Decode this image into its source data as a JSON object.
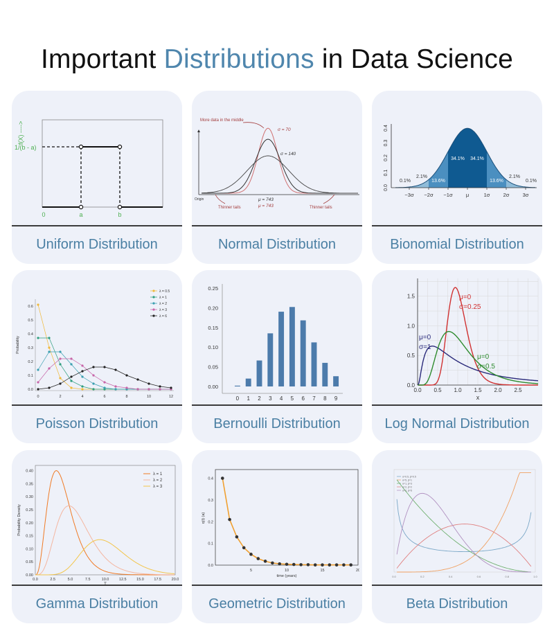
{
  "title": {
    "part1": "Important",
    "accent": "Distributions",
    "part2": "in Data Science"
  },
  "cards": [
    {
      "label": "Uniform Distribution"
    },
    {
      "label": "Normal Distribution"
    },
    {
      "label": "Bionomial Distribution"
    },
    {
      "label": "Poisson Distribution"
    },
    {
      "label": "Bernoulli Distribution"
    },
    {
      "label": "Log Normal Distribution"
    },
    {
      "label": "Gamma Distribution"
    },
    {
      "label": "Geometric Distribution"
    },
    {
      "label": "Beta Distribution"
    }
  ],
  "colors": {
    "accent": "#4f86ad",
    "card_bg": "#eef1f9",
    "green": "#4caf50",
    "red_annot": "#a33c3c"
  },
  "uniform": {
    "ylabel": "f(X) ---->",
    "level_label": "1/(b - a)",
    "xlabels": [
      "0",
      "a",
      "b"
    ]
  },
  "normal": {
    "annot_middle": "More data in the middle",
    "sigma1": "σ = 70",
    "sigma2": "σ = 140",
    "mu1": "μ = 743",
    "mu2": "μ = 743",
    "tails_left": "Thinner tails",
    "tails_right": "Thinner tails",
    "origin": "Origin"
  },
  "binomial": {
    "yticks": [
      "0.0",
      "0.1",
      "0.2",
      "0.3",
      "0.4"
    ],
    "xticks": [
      "−3σ",
      "−2σ",
      "−1σ",
      "μ",
      "1σ",
      "2σ",
      "3σ"
    ],
    "pct": [
      "0.1%",
      "2.1%",
      "13.6%",
      "34.1%",
      "34.1%",
      "13.6%",
      "2.1%",
      "0.1%"
    ]
  },
  "chart_data": [
    {
      "type": "line",
      "ylabel": "Probability",
      "xticks": [
        0,
        2,
        4,
        6,
        8,
        10,
        12
      ],
      "yticks": [
        0.0,
        0.1,
        0.2,
        0.3,
        0.4,
        0.5,
        0.6
      ],
      "ylim": [
        0,
        0.65
      ],
      "series": [
        {
          "name": "λ = 0.5",
          "color": "#f0b93a",
          "x": [
            0,
            1,
            2,
            3,
            4,
            5,
            6,
            7,
            8,
            9,
            10,
            11,
            12
          ],
          "values": [
            0.61,
            0.3,
            0.08,
            0.01,
            0,
            0,
            0,
            0,
            0,
            0,
            0,
            0,
            0
          ]
        },
        {
          "name": "λ = 1",
          "color": "#2e9e7e",
          "x": [
            0,
            1,
            2,
            3,
            4,
            5,
            6,
            7,
            8,
            9,
            10,
            11,
            12
          ],
          "values": [
            0.37,
            0.37,
            0.18,
            0.06,
            0.02,
            0,
            0,
            0,
            0,
            0,
            0,
            0,
            0
          ]
        },
        {
          "name": "λ = 2",
          "color": "#3a9fb0",
          "x": [
            0,
            1,
            2,
            3,
            4,
            5,
            6,
            7,
            8,
            9,
            10,
            11,
            12
          ],
          "values": [
            0.14,
            0.27,
            0.27,
            0.18,
            0.09,
            0.04,
            0.01,
            0,
            0,
            0,
            0,
            0,
            0
          ]
        },
        {
          "name": "λ = 3",
          "color": "#c765a8",
          "x": [
            0,
            1,
            2,
            3,
            4,
            5,
            6,
            7,
            8,
            9,
            10,
            11,
            12
          ],
          "values": [
            0.05,
            0.15,
            0.22,
            0.22,
            0.17,
            0.1,
            0.05,
            0.02,
            0.01,
            0,
            0,
            0,
            0
          ]
        },
        {
          "name": "λ = 6",
          "color": "#222222",
          "x": [
            0,
            1,
            2,
            3,
            4,
            5,
            6,
            7,
            8,
            9,
            10,
            11,
            12
          ],
          "values": [
            0.0,
            0.01,
            0.04,
            0.09,
            0.13,
            0.16,
            0.16,
            0.14,
            0.1,
            0.07,
            0.04,
            0.02,
            0.01
          ]
        }
      ]
    },
    {
      "type": "bar",
      "categories": [
        "0",
        "1",
        "2",
        "3",
        "4",
        "5",
        "6",
        "7",
        "8",
        "9"
      ],
      "values": [
        0.002,
        0.02,
        0.066,
        0.135,
        0.19,
        0.202,
        0.168,
        0.112,
        0.06,
        0.026
      ],
      "yticks": [
        "0.00",
        "0.05",
        "0.10",
        "0.15",
        "0.20",
        "0.25"
      ],
      "ylim": [
        0,
        0.25
      ],
      "color": "#4c7bab"
    },
    {
      "type": "line",
      "xlabel": "x",
      "xticks": [
        "0.0",
        "0.5",
        "1.0",
        "1.5",
        "2.0",
        "2.5"
      ],
      "yticks": [
        "0.0",
        "0.5",
        "1.0",
        "1.5"
      ],
      "xlim": [
        0,
        3.0
      ],
      "ylim": [
        0,
        1.8
      ],
      "series": [
        {
          "color": "#d03030",
          "mu_label": "μ=0",
          "sigma_label": "σ=0.25",
          "mu": 0,
          "sigma": 0.25
        },
        {
          "color": "#2a2a7a",
          "mu_label": "μ=0",
          "sigma_label": "σ=1",
          "mu": 0,
          "sigma": 1
        },
        {
          "color": "#2e8b2e",
          "mu_label": "μ=0",
          "sigma_label": "σ=0.5",
          "mu": 0,
          "sigma": 0.5
        }
      ]
    },
    {
      "type": "line",
      "xlabel": "T",
      "ylabel": "Probability Density",
      "xticks": [
        "0.0",
        "2.5",
        "5.0",
        "7.5",
        "10.0",
        "12.5",
        "15.0",
        "17.5",
        "20.0"
      ],
      "yticks": [
        "0.00",
        "0.05",
        "0.10",
        "0.15",
        "0.20",
        "0.25",
        "0.30",
        "0.35",
        "0.40"
      ],
      "xlim": [
        0,
        20
      ],
      "ylim": [
        0,
        0.42
      ],
      "series": [
        {
          "name": "λ = 1",
          "color": "#f07a24",
          "shape": 4,
          "scale": 0.8
        },
        {
          "name": "λ = 2",
          "color": "#f4b6a0",
          "shape": 5,
          "scale": 1.0
        },
        {
          "name": "λ = 3",
          "color": "#f3c54a",
          "shape": 10,
          "scale": 1.0
        }
      ]
    },
    {
      "type": "scatter",
      "xlabel": "time (years)",
      "ylabel": "q(t) (a)",
      "xticks": [
        "5",
        "10",
        "15",
        "20"
      ],
      "yticks": [
        "0.0",
        "0.1",
        "0.2",
        "0.3",
        "0.4"
      ],
      "xlim": [
        0,
        20
      ],
      "ylim": [
        0,
        0.44
      ],
      "x": [
        1,
        2,
        3,
        4,
        5,
        6,
        7,
        8,
        9,
        10,
        11,
        12,
        13,
        14,
        15,
        16,
        17,
        18,
        19
      ],
      "values": [
        0.4,
        0.21,
        0.13,
        0.08,
        0.05,
        0.03,
        0.018,
        0.01,
        0.006,
        0.004,
        0.003,
        0.002,
        0.002,
        0.001,
        0.001,
        0.001,
        0.001,
        0.001,
        0.001
      ],
      "line_color": "#f0a030",
      "point_color": "#333333"
    },
    {
      "type": "line",
      "xticks": [
        "0.0",
        "0.2",
        "0.4",
        "0.6",
        "0.8",
        "1.0"
      ],
      "xlim": [
        0,
        1
      ],
      "ylim": [
        0,
        3.2
      ],
      "series": [
        {
          "name": "α=0.5, β=0.5",
          "color": "#7aa7c7",
          "a": 0.5,
          "b": 0.5
        },
        {
          "name": "α=5, β=1",
          "color": "#f0a060",
          "a": 5,
          "b": 1
        },
        {
          "name": "α=1, β=3",
          "color": "#70b070",
          "a": 1,
          "b": 3
        },
        {
          "name": "α=2, β=2",
          "color": "#e08080",
          "a": 2,
          "b": 2
        },
        {
          "name": "α=2, β=5",
          "color": "#b090c0",
          "a": 2,
          "b": 5
        }
      ]
    }
  ]
}
